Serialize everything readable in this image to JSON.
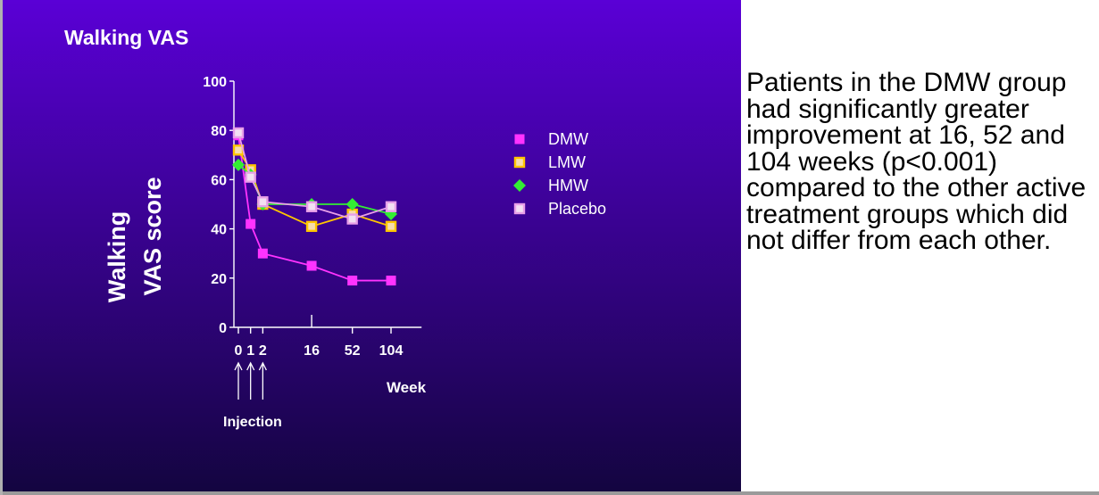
{
  "slide": {
    "caption": "Patients in the DMW group had significantly greater improvement at 16, 52 and 104 weeks (p<0.001) compared to the other active treatment groups which did not differ from each other."
  },
  "colors": {
    "background_top": "#5a00d6",
    "background_bottom": "#13053f",
    "axis": "#ffffff"
  },
  "chart_data": {
    "type": "line",
    "title": "Walking VAS",
    "ylabel_lines": [
      "Walking",
      "VAS score"
    ],
    "xlabel": "Week",
    "annotation": "Injection",
    "injection_weeks": [
      "0",
      "1",
      "2"
    ],
    "ylim": [
      0,
      100
    ],
    "yticks": [
      0,
      20,
      40,
      60,
      80,
      100
    ],
    "x_categories": [
      "0",
      "1",
      "2",
      "16",
      "52",
      "104"
    ],
    "x_tick_labels": [
      "0",
      "1",
      "2",
      "16",
      "52",
      "104"
    ],
    "x_positions": [
      0,
      0.6,
      1.2,
      3.6,
      5.6,
      7.5
    ],
    "x_domain": [
      0,
      9
    ],
    "grid": false,
    "legend_placement": "right",
    "series": [
      {
        "name": "DMW",
        "color": "#ff33ff",
        "marker": "square-filled",
        "values": [
          78,
          42,
          30,
          25,
          19,
          19
        ]
      },
      {
        "name": "LMW",
        "color": "#ffc600",
        "marker": "square-open",
        "values": [
          72,
          64,
          50,
          41,
          46,
          41
        ]
      },
      {
        "name": "HMW",
        "color": "#33ee33",
        "marker": "diamond",
        "values": [
          66,
          62,
          50,
          50,
          50,
          46
        ]
      },
      {
        "name": "Placebo",
        "color": "#e8a0e8",
        "marker": "square-open-light",
        "values": [
          79,
          61,
          51,
          49,
          44,
          49
        ]
      }
    ]
  }
}
